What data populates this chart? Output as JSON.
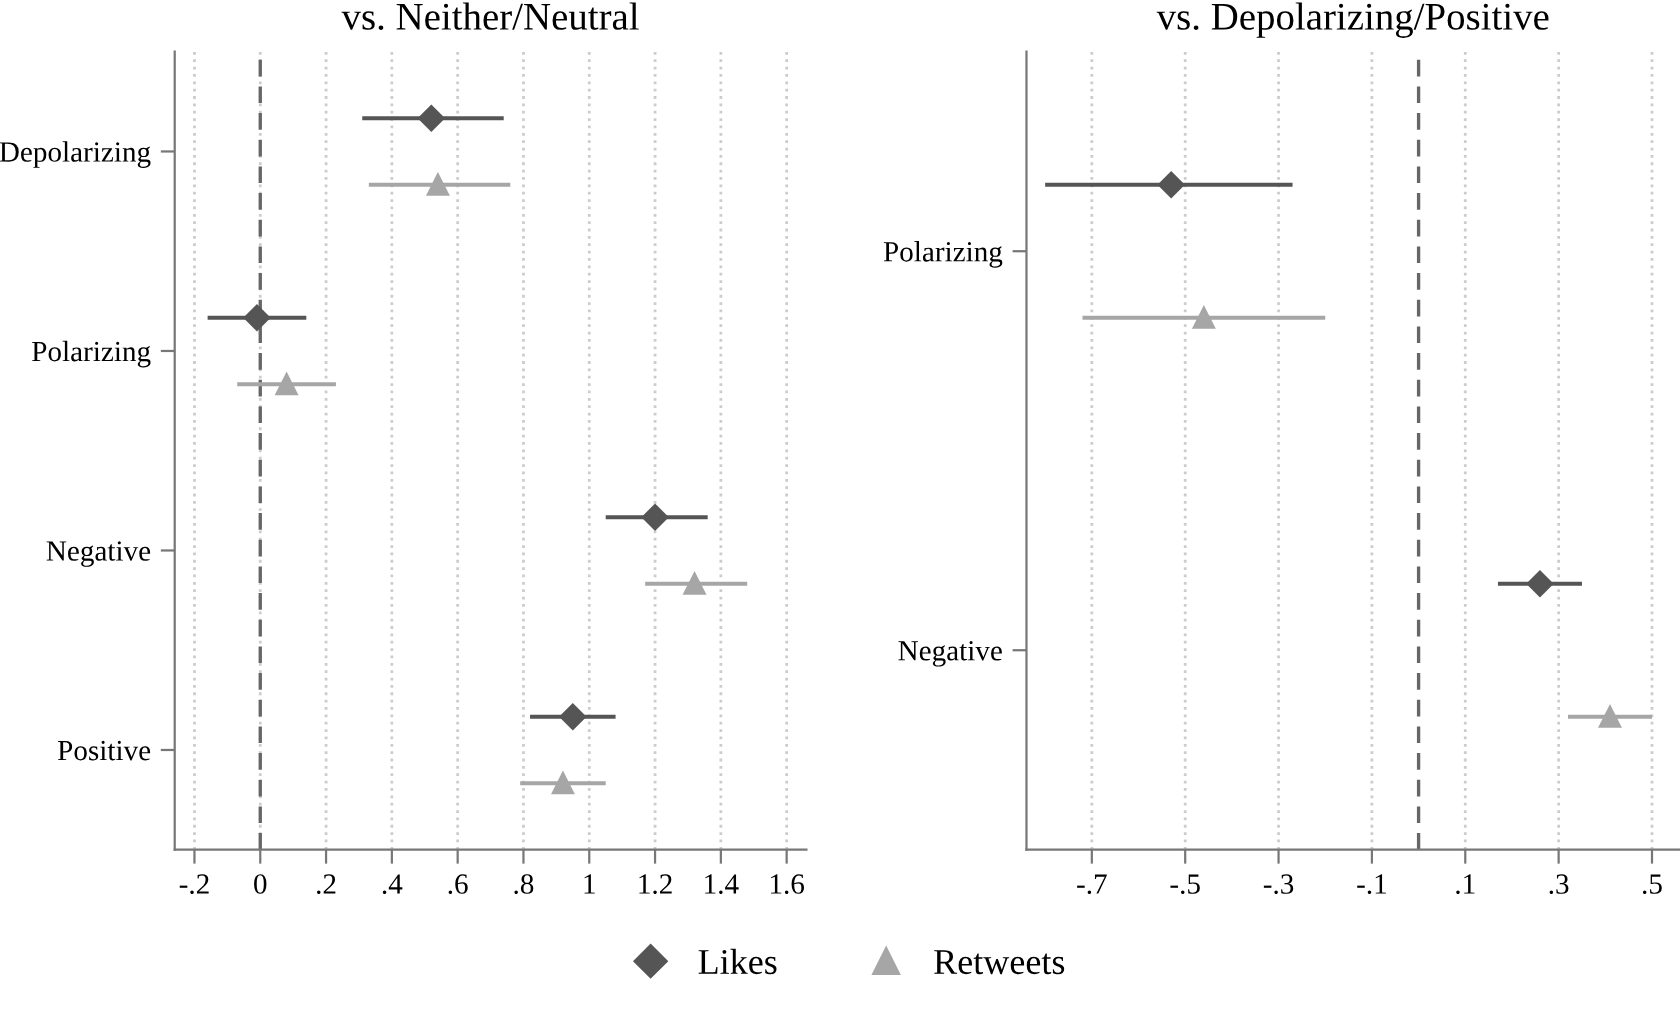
{
  "chart_data": [
    {
      "type": "scatter",
      "orientation": "horizontal",
      "title": "vs. Neither/Neutral",
      "categories": [
        "Depolarizing",
        "Polarizing",
        "Negative",
        "Positive"
      ],
      "series": [
        {
          "name": "Likes",
          "color": "#555555",
          "marker": "diamond",
          "values": [
            0.52,
            -0.01,
            1.2,
            0.95
          ],
          "errors": [
            [
              0.31,
              0.74
            ],
            [
              -0.16,
              0.14
            ],
            [
              1.05,
              1.36
            ],
            [
              0.82,
              1.08
            ]
          ]
        },
        {
          "name": "Retweets",
          "color": "#a6a6a6",
          "marker": "triangle",
          "values": [
            0.54,
            0.08,
            1.32,
            0.92
          ],
          "errors": [
            [
              0.33,
              0.76
            ],
            [
              -0.07,
              0.23
            ],
            [
              1.17,
              1.48
            ],
            [
              0.79,
              1.05
            ]
          ]
        }
      ],
      "xlim": [
        -0.26,
        1.66
      ],
      "xticks": [
        {
          "value": -0.2,
          "label": "-.2"
        },
        0,
        {
          "value": 0.2,
          "label": ".2"
        },
        {
          "value": 0.4,
          "label": ".4"
        },
        {
          "value": 0.6,
          "label": ".6"
        },
        {
          "value": 0.8,
          "label": ".8"
        },
        1,
        1.2,
        1.4,
        1.6
      ],
      "grid": "x",
      "ref_lines": [
        {
          "axis": "x",
          "value": 0,
          "line_style": "dashed",
          "color": "#666666"
        }
      ],
      "legend": "bottom"
    },
    {
      "type": "scatter",
      "orientation": "horizontal",
      "title": "vs. Depolarizing/Positive",
      "categories": [
        "Polarizing",
        "Negative"
      ],
      "series": [
        {
          "name": "Likes",
          "color": "#555555",
          "marker": "diamond",
          "values": [
            -0.53,
            0.26
          ],
          "errors": [
            [
              -0.8,
              -0.27
            ],
            [
              0.17,
              0.35
            ]
          ]
        },
        {
          "name": "Retweets",
          "color": "#a6a6a6",
          "marker": "triangle",
          "values": [
            -0.46,
            0.41
          ],
          "errors": [
            [
              -0.72,
              -0.2
            ],
            [
              0.32,
              0.5
            ]
          ]
        }
      ],
      "xlim": [
        -0.84,
        0.56
      ],
      "xticks": [
        {
          "value": -0.7,
          "label": "-.7"
        },
        {
          "value": -0.5,
          "label": "-.5"
        },
        {
          "value": -0.3,
          "label": "-.3"
        },
        {
          "value": -0.1,
          "label": "-.1"
        },
        {
          "value": 0.1,
          "label": ".1"
        },
        {
          "value": 0.3,
          "label": ".3"
        },
        {
          "value": 0.5,
          "label": ".5"
        }
      ],
      "grid": "x",
      "ref_lines": [
        {
          "axis": "x",
          "value": 0,
          "line_style": "dashed",
          "color": "#666666"
        }
      ]
    }
  ]
}
